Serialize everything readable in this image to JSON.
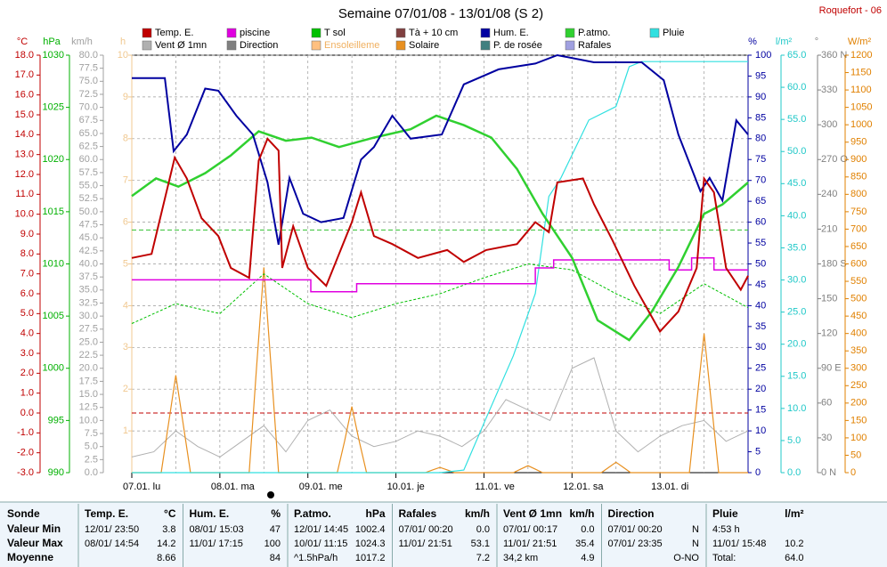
{
  "chart_data": {
    "type": "line",
    "title": "Semaine 07/01/08 - 13/01/08 (S 2)",
    "station": "Roquefort - 06",
    "xlim": [
      0,
      168
    ],
    "xticks": [
      0,
      12,
      24,
      36,
      48,
      60,
      72,
      84,
      96,
      108,
      120,
      132,
      144,
      156,
      168
    ],
    "days": {
      "labels": [
        "07.01. lu",
        "08.01. ma",
        "09.01. me",
        "10.01. je",
        "11.01. ve",
        "12.01. sa",
        "13.01. di"
      ],
      "x": [
        0,
        24,
        48,
        72,
        96,
        120,
        144
      ]
    },
    "grid": true,
    "axes": [
      {
        "label": "°C",
        "color": "#c00000",
        "lim": [
          -3,
          18
        ],
        "ticks": [
          {
            "value": 18,
            "label": "18.0"
          },
          {
            "value": 17,
            "label": "17.0"
          },
          {
            "value": 16,
            "label": "16.0"
          },
          {
            "value": 15,
            "label": "15.0"
          },
          {
            "value": 14,
            "label": "14.0"
          },
          {
            "value": 13,
            "label": "13.0"
          },
          {
            "value": 12,
            "label": "12.0"
          },
          {
            "value": 11,
            "label": "11.0"
          },
          {
            "value": 10,
            "label": "10.0"
          },
          {
            "value": 9,
            "label": "9.0"
          },
          {
            "value": 8,
            "label": "8.0"
          },
          {
            "value": 7,
            "label": "7.0"
          },
          {
            "value": 6,
            "label": "6.0"
          },
          {
            "value": 5,
            "label": "5.0"
          },
          {
            "value": 4,
            "label": "4.0"
          },
          {
            "value": 3,
            "label": "3.0"
          },
          {
            "value": 2,
            "label": "2.0"
          },
          {
            "value": 1,
            "label": "1.0"
          },
          {
            "value": 0,
            "label": "0.0"
          },
          {
            "value": -1,
            "label": "-1.0"
          },
          {
            "value": -2,
            "label": "-2.0"
          },
          {
            "value": -3,
            "label": "-3.0"
          }
        ]
      },
      {
        "label": "hPa",
        "color": "#00b000",
        "lim": [
          990,
          1030
        ],
        "ticks": [
          1030,
          1025,
          1020,
          1015,
          1010,
          1005,
          1000,
          995,
          990
        ]
      },
      {
        "label": "km/h",
        "color": "#a0a0a0",
        "lim": [
          0,
          80
        ],
        "ticks": [
          {
            "value": 80,
            "label": "80.0"
          },
          77.5,
          {
            "value": 75,
            "label": "75.0"
          },
          72.5,
          {
            "value": 70,
            "label": "70.0"
          },
          67.5,
          {
            "value": 65,
            "label": "65.0"
          },
          62.5,
          {
            "value": 60,
            "label": "60.0"
          },
          57.5,
          {
            "value": 55,
            "label": "55.0"
          },
          52.5,
          {
            "value": 50,
            "label": "50.0"
          },
          47.5,
          {
            "value": 45,
            "label": "45.0"
          },
          42.5,
          {
            "value": 40,
            "label": "40.0"
          },
          37.5,
          {
            "value": 35,
            "label": "35.0"
          },
          32.5,
          {
            "value": 30,
            "label": "30.0"
          },
          27.5,
          {
            "value": 25,
            "label": "25.0"
          },
          22.5,
          {
            "value": 20,
            "label": "20.0"
          },
          17.5,
          {
            "value": 15,
            "label": "15.0"
          },
          12.5,
          {
            "value": 10,
            "label": "10.0"
          },
          7.5,
          {
            "value": 5,
            "label": "5.0"
          },
          2.5,
          {
            "value": 0,
            "label": "0.0"
          }
        ]
      },
      {
        "label": "h",
        "color": "#f0c890",
        "lim": [
          0,
          10
        ],
        "ticks": [
          10,
          9,
          8,
          7,
          6,
          5,
          4,
          3,
          2,
          1
        ]
      },
      {
        "label": "%",
        "color": "#0000a0",
        "lim": [
          0,
          100
        ],
        "ticks": [
          100,
          95,
          90,
          85,
          80,
          75,
          70,
          65,
          60,
          55,
          50,
          45,
          40,
          35,
          30,
          25,
          20,
          15,
          10,
          5,
          0
        ]
      },
      {
        "label": "l/m²",
        "color": "#20c8c8",
        "lim": [
          0,
          65
        ],
        "ticks": [
          {
            "value": 65,
            "label": "65.0"
          },
          {
            "value": 60,
            "label": "60.0"
          },
          {
            "value": 55,
            "label": "55.0"
          },
          {
            "value": 50,
            "label": "50.0"
          },
          {
            "value": 45,
            "label": "45.0"
          },
          {
            "value": 40,
            "label": "40.0"
          },
          {
            "value": 35,
            "label": "35.0"
          },
          {
            "value": 30,
            "label": "30.0"
          },
          {
            "value": 25,
            "label": "25.0"
          },
          {
            "value": 20,
            "label": "20.0"
          },
          {
            "value": 15,
            "label": "15.0"
          },
          {
            "value": 10,
            "label": "10.0"
          },
          {
            "value": 5,
            "label": "5.0"
          },
          {
            "value": 0,
            "label": "0.0"
          }
        ]
      },
      {
        "label": "°",
        "color": "#808080",
        "lim": [
          0,
          360
        ],
        "ticks": [
          {
            "value": 360,
            "label": "360 N"
          },
          330,
          300,
          {
            "value": 270,
            "label": "270 O"
          },
          240,
          210,
          {
            "value": 180,
            "label": "180 S"
          },
          150,
          120,
          {
            "value": 90,
            "label": "90 E"
          },
          60,
          30,
          {
            "value": 0,
            "label": "0 N"
          }
        ]
      },
      {
        "label": "W/m²",
        "color": "#e08000",
        "lim": [
          0,
          1200
        ],
        "ticks": [
          1200,
          1150,
          1100,
          1050,
          1000,
          950,
          900,
          850,
          800,
          750,
          700,
          650,
          600,
          550,
          500,
          450,
          400,
          350,
          300,
          250,
          200,
          150,
          100,
          50,
          0
        ]
      }
    ],
    "hlines": [
      {
        "axis": 1,
        "value": 1013.25,
        "color": "#30c030"
      },
      {
        "axis": 0,
        "value": 0,
        "color": "#c00000"
      }
    ],
    "series": [
      {
        "name": "Temp. E.",
        "color": "#c00000",
        "axis": 0,
        "width": 2,
        "x": [
          0,
          5.4,
          11.7,
          15,
          19,
          23.6,
          27,
          32,
          34.6,
          37,
          40,
          41,
          44,
          48,
          53,
          60,
          62.5,
          66,
          71,
          78,
          86,
          90.5,
          96.6,
          105,
          110,
          113.7,
          116,
          123,
          126,
          131,
          137,
          144,
          149,
          154,
          156,
          158.7,
          162,
          166,
          168
        ],
        "values": [
          7.8,
          8.0,
          12.85,
          11.8,
          9.8,
          8.9,
          7.3,
          6.8,
          12.7,
          13.8,
          13.2,
          7.3,
          9.4,
          7.3,
          6.4,
          9.6,
          11.1,
          8.9,
          8.5,
          7.8,
          8.2,
          7.6,
          8.2,
          8.5,
          9.6,
          9.1,
          11.6,
          11.8,
          10.5,
          8.7,
          6.4,
          4.1,
          5.1,
          7.3,
          11.8,
          11.1,
          7.3,
          6.2,
          6.9
        ]
      },
      {
        "name": "piscine",
        "color": "#e000e0",
        "axis": 0,
        "width": 1.5,
        "x": [
          0,
          48.8,
          48.8,
          61.3,
          61.3,
          110,
          110,
          115,
          115,
          146.5,
          146.5,
          152.6,
          152.6,
          158.7,
          158.7,
          168
        ],
        "values": [
          6.7,
          6.7,
          6.1,
          6.1,
          6.5,
          6.5,
          7.3,
          7.3,
          7.7,
          7.7,
          7.2,
          7.2,
          7.8,
          7.8,
          7.2,
          7.2
        ]
      },
      {
        "name": "T sol",
        "color": "#00c000",
        "axis": 0,
        "width": 1,
        "dash": true,
        "x": [
          0,
          12,
          24,
          36,
          48,
          60,
          72,
          84,
          96,
          108,
          120,
          132,
          144,
          156,
          168
        ],
        "values": [
          4.5,
          5.5,
          5.0,
          7.0,
          5.5,
          4.8,
          5.5,
          6.0,
          6.8,
          7.5,
          7.2,
          6.0,
          5.0,
          6.5,
          5.3
        ]
      },
      {
        "name": "Tà + 10 cm",
        "color": "#804040"
      },
      {
        "name": "Hum. E.",
        "color": "#0000a0",
        "axis": 4,
        "width": 2,
        "x": [
          0,
          9,
          11.4,
          15,
          20,
          23.6,
          28.5,
          33,
          37,
          40,
          43,
          46.7,
          51.6,
          57.7,
          62.5,
          66,
          71,
          76,
          84.5,
          90.5,
          100,
          110,
          116,
          126,
          139,
          145,
          149,
          155,
          157.5,
          161,
          164.8,
          168
        ],
        "values": [
          94.5,
          94.5,
          77,
          81,
          92,
          91.5,
          85.5,
          81,
          69.5,
          54.6,
          70.6,
          62,
          60,
          61,
          75,
          78,
          85.5,
          80,
          81,
          93,
          96.6,
          98,
          100,
          98.3,
          98.3,
          94,
          81,
          67.4,
          70.6,
          65.2,
          84.4,
          81
        ]
      },
      {
        "name": "P.atmo.",
        "color": "#30d030",
        "axis": 1,
        "width": 2.5,
        "x": [
          0,
          6.6,
          12.7,
          20,
          27,
          34.6,
          42,
          49,
          56.5,
          66,
          76,
          83,
          90.5,
          98,
          105,
          112,
          120,
          127,
          135.6,
          141.7,
          149,
          156,
          161,
          168
        ],
        "values": [
          1016.5,
          1018.2,
          1017.4,
          1018.7,
          1020.4,
          1022.7,
          1021.8,
          1022.1,
          1021.2,
          1022.1,
          1022.9,
          1024.2,
          1023.3,
          1022.1,
          1019.1,
          1014.8,
          1010.6,
          1004.6,
          1002.7,
          1005.4,
          1009.7,
          1014.8,
          1015.7,
          1017.8
        ]
      },
      {
        "name": "Pluie",
        "color": "#30e0e0",
        "axis": 5,
        "width": 1.2,
        "x": [
          0,
          84,
          90.5,
          96.6,
          104,
          110,
          113.7,
          117,
          124.6,
          132,
          135.6,
          139,
          168
        ],
        "values": [
          0,
          0,
          0.4,
          8.5,
          18.2,
          27.9,
          43,
          45.9,
          54.9,
          57,
          63.2,
          64,
          64
        ]
      },
      {
        "name": "Vent Ø 1mn",
        "color": "#b0b0b0",
        "axis": 2,
        "width": 1,
        "x": [
          0,
          6,
          12,
          18,
          24,
          30,
          36,
          42,
          48,
          54,
          60,
          66,
          72,
          78,
          84,
          90,
          96,
          102,
          108,
          114,
          120,
          126,
          132,
          138,
          144,
          150,
          156,
          162,
          168
        ],
        "values": [
          3,
          4,
          8,
          5,
          3,
          6,
          9,
          4,
          10,
          12,
          7,
          5,
          6,
          8,
          7,
          5,
          8,
          14,
          12,
          10,
          20,
          22,
          8,
          4,
          7,
          9,
          10,
          6,
          8
        ]
      },
      {
        "name": "Direction",
        "color": "#808080"
      },
      {
        "name": "Ensoleilleme",
        "color": "#ffc080"
      },
      {
        "name": "Solaire",
        "color": "#e89020",
        "axis": 7,
        "width": 1.2,
        "x": [
          0,
          8,
          10,
          12,
          14,
          16,
          32,
          34,
          36,
          38,
          40,
          56,
          58,
          60,
          62,
          64,
          80,
          82,
          84,
          86,
          88,
          104,
          106,
          108,
          110,
          112,
          128,
          130,
          132,
          134,
          136,
          152,
          154,
          156,
          158,
          160,
          168
        ],
        "values": [
          0,
          0,
          140,
          280,
          140,
          0,
          0,
          300,
          590,
          300,
          0,
          0,
          90,
          190,
          90,
          0,
          0,
          8,
          15,
          8,
          0,
          0,
          10,
          20,
          10,
          0,
          0,
          15,
          30,
          15,
          0,
          0,
          200,
          400,
          200,
          0,
          0
        ]
      },
      {
        "name": "P. de rosée",
        "color": "#408080"
      },
      {
        "name": "Rafales",
        "color": "#a0a0e0",
        "axis": 2,
        "width": 1,
        "x": [
          0,
          6,
          12,
          18,
          24,
          30,
          36,
          42,
          48,
          54,
          60,
          66,
          72,
          78,
          84,
          90,
          96,
          102,
          108,
          114,
          120,
          126,
          132,
          138,
          144,
          150,
          156,
          162,
          168
        ],
        "values": [
          5,
          7,
          14,
          9,
          6,
          10,
          16,
          8,
          18,
          20,
          13,
          9,
          11,
          14,
          12,
          9,
          14,
          24,
          22,
          20,
          28,
          33,
          15,
          8,
          13,
          16,
          18,
          11,
          14
        ]
      }
    ]
  },
  "stats": {
    "row_labels": [
      "Sonde",
      "Valeur Min",
      "Valeur Max",
      "Moyenne"
    ],
    "columns": [
      {
        "title": "Temp. E.",
        "unit": "°C",
        "rows": [
          {
            "d": "12/01/ 23:50",
            "v": "3.8"
          },
          {
            "d": "08/01/ 14:54",
            "v": "14.2"
          },
          {
            "v": "8.66"
          }
        ]
      },
      {
        "title": "Hum. E.",
        "unit": "%",
        "rows": [
          {
            "d": "08/01/ 15:03",
            "v": "47"
          },
          {
            "d": "11/01/ 17:15",
            "v": "100"
          },
          {
            "v": "84"
          }
        ]
      },
      {
        "title": "P.atmo.",
        "unit": "hPa",
        "rows": [
          {
            "d": "12/01/ 14:45",
            "v": "1002.4"
          },
          {
            "d": "10/01/ 11:15",
            "v": "1024.3"
          },
          {
            "d": "^1.5hPa/h",
            "v": "1017.2"
          }
        ]
      },
      {
        "title": "Rafales",
        "unit": "km/h",
        "rows": [
          {
            "d": "07/01/ 00:20",
            "v": "0.0"
          },
          {
            "d": "11/01/ 21:51",
            "v": "53.1"
          },
          {
            "v": "7.2"
          }
        ]
      },
      {
        "title": "Vent Ø 1mn",
        "unit": "km/h",
        "rows": [
          {
            "d": "07/01/ 00:17",
            "v": "0.0"
          },
          {
            "d": "11/01/ 21:51",
            "v": "35.4"
          },
          {
            "d": "34,2 km",
            "v": "4.9"
          }
        ]
      },
      {
        "title": "Direction",
        "rows": [
          {
            "d": "07/01/ 00:20",
            "v": "N"
          },
          {
            "d": "07/01/ 23:35",
            "v": "N"
          },
          {
            "v": "O-NO"
          }
        ]
      },
      {
        "title": "Pluie",
        "unit": "l/m²",
        "rows": [
          {
            "d": "4:53 h"
          },
          {
            "d": "11/01/ 15:48",
            "v": "10.2"
          },
          {
            "d": "Total:",
            "v": "64.0"
          }
        ]
      }
    ]
  }
}
